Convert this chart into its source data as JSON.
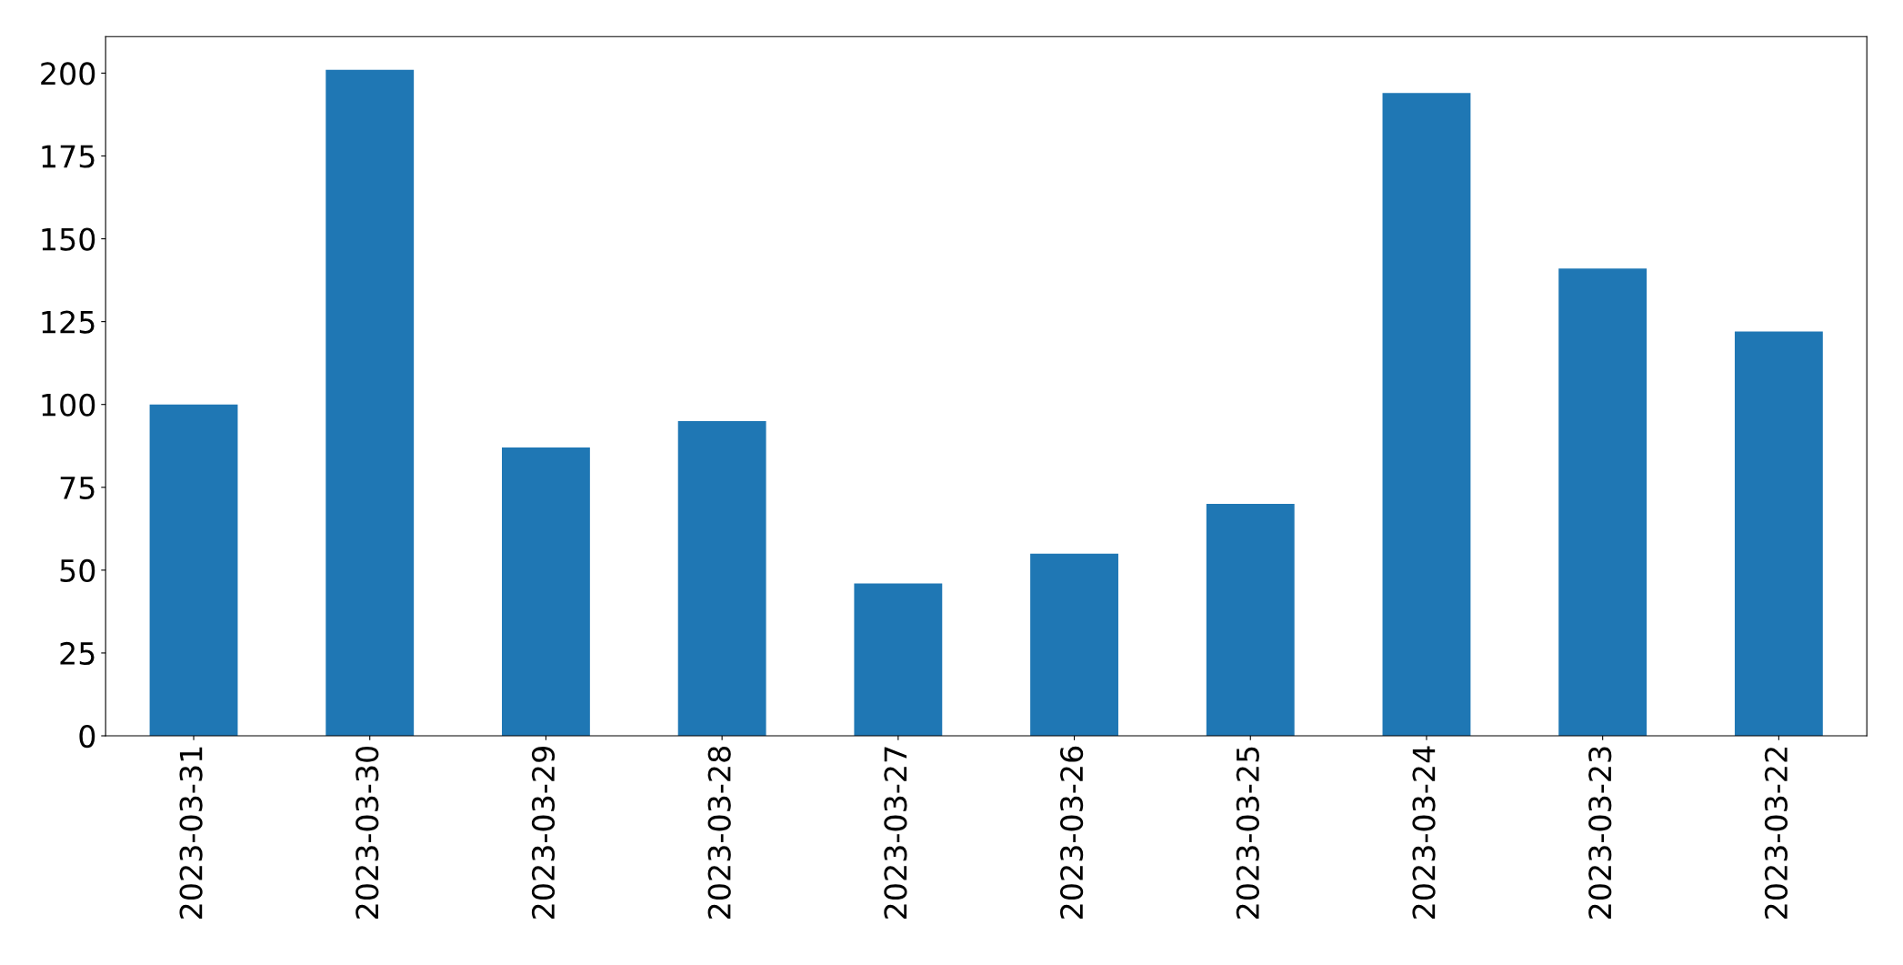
{
  "chart_data": {
    "type": "bar",
    "categories": [
      "2023-03-31",
      "2023-03-30",
      "2023-03-29",
      "2023-03-28",
      "2023-03-27",
      "2023-03-26",
      "2023-03-25",
      "2023-03-24",
      "2023-03-23",
      "2023-03-22"
    ],
    "values": [
      100,
      201,
      87,
      95,
      46,
      55,
      70,
      194,
      141,
      122
    ],
    "color": "#1f77b4",
    "ylim": [
      0,
      211
    ],
    "yticks": [
      0,
      25,
      50,
      75,
      100,
      125,
      150,
      175,
      200
    ],
    "grid": false,
    "legend": false
  }
}
